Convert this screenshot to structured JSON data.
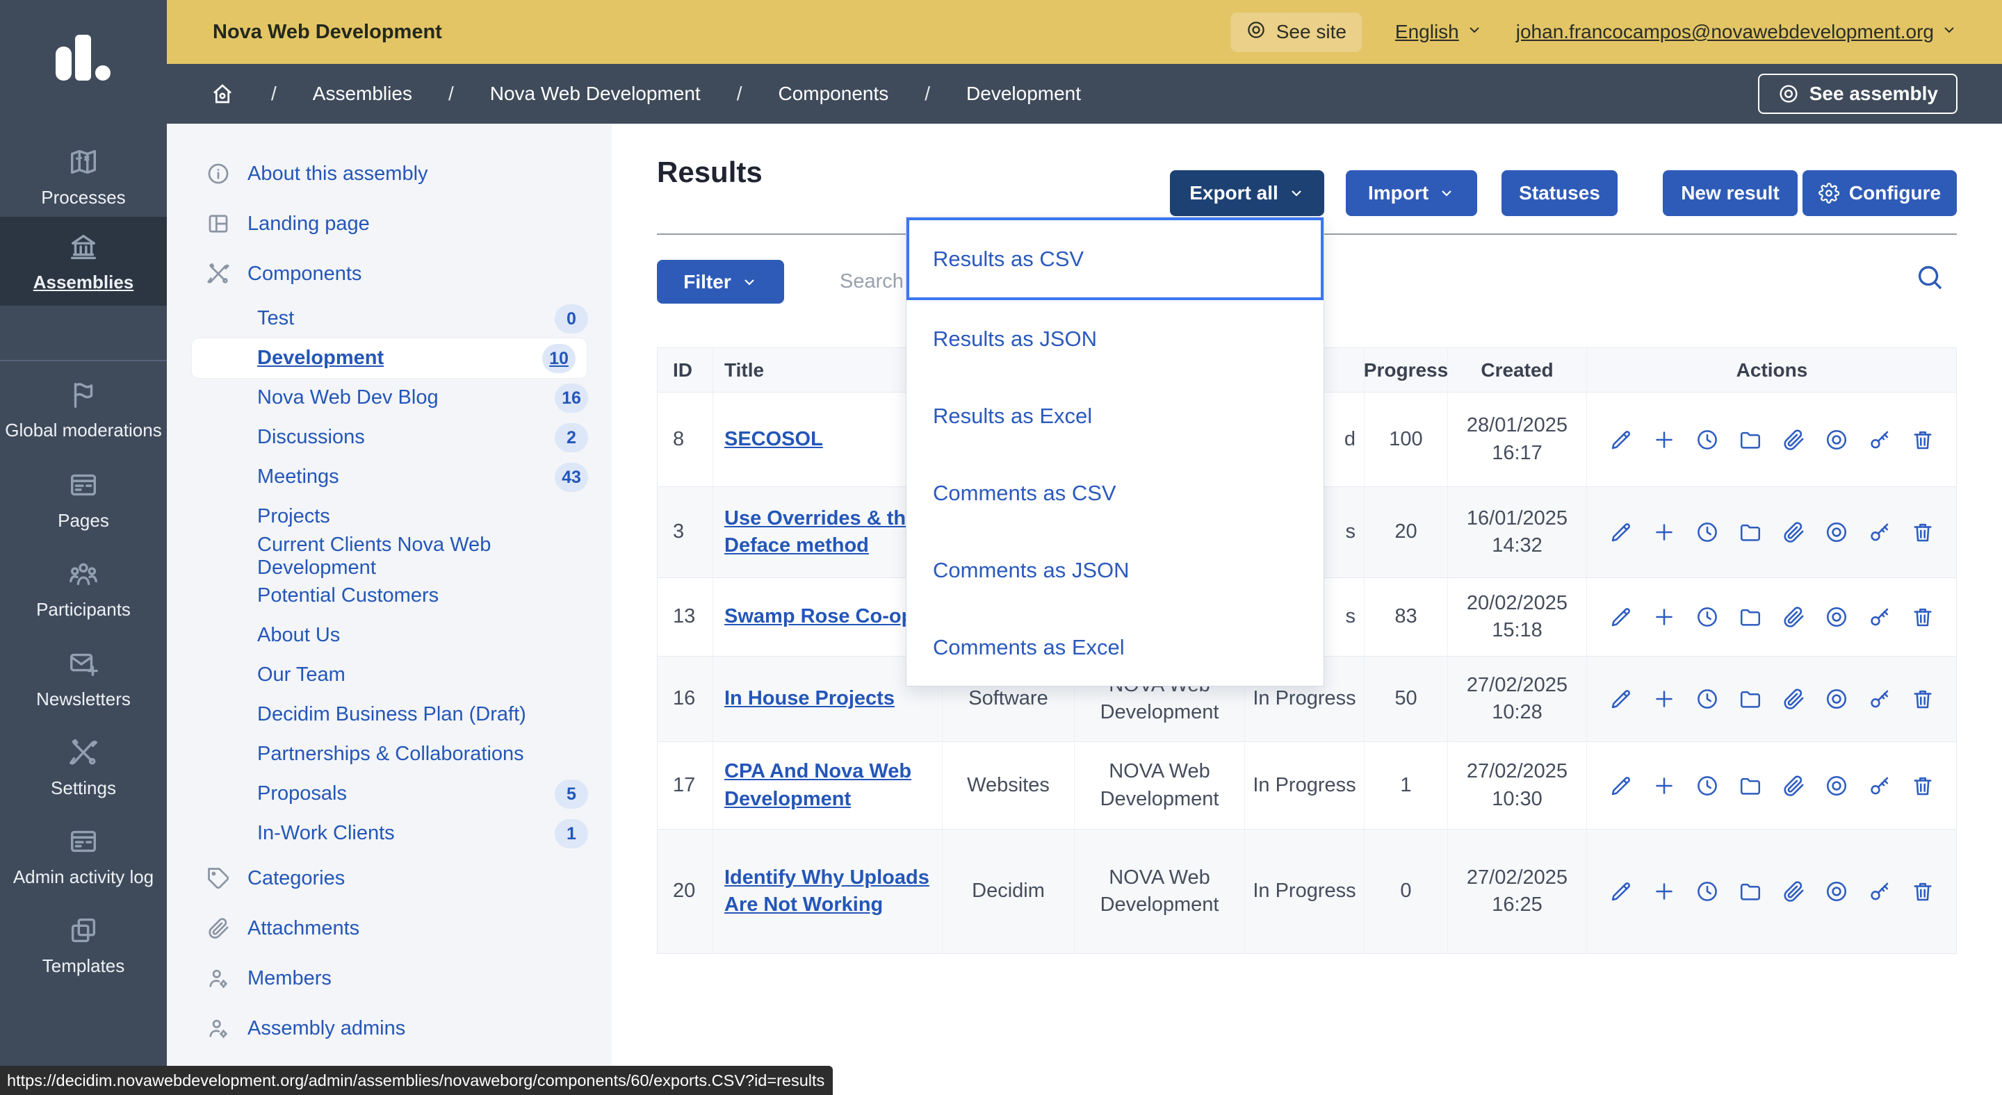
{
  "topbar": {
    "org": "Nova Web Development",
    "see_site": "See site",
    "language": "English",
    "user_email": "johan.francocampos@novawebdevelopment.org"
  },
  "breadcrumb": {
    "items": [
      "Assemblies",
      "Nova Web Development",
      "Components",
      "Development"
    ],
    "see_assembly": "See assembly"
  },
  "nav": {
    "items": [
      {
        "icon": "map-icon",
        "label": "Processes",
        "active": false
      },
      {
        "icon": "bank-icon",
        "label": "Assemblies",
        "active": true
      },
      {
        "icon": "flag-icon",
        "label": "Global moderations",
        "active": false
      },
      {
        "icon": "browser-icon",
        "label": "Pages",
        "active": false
      },
      {
        "icon": "people-icon",
        "label": "Participants",
        "active": false
      },
      {
        "icon": "mail-plus-icon",
        "label": "Newsletters",
        "active": false
      },
      {
        "icon": "tools-icon",
        "label": "Settings",
        "active": false
      },
      {
        "icon": "browser-icon",
        "label": "Admin activity log",
        "active": false
      },
      {
        "icon": "copy-icon",
        "label": "Templates",
        "active": false
      }
    ]
  },
  "assembly_menu": {
    "items": [
      {
        "type": "main",
        "icon": "info-icon",
        "label": "About this assembly"
      },
      {
        "type": "main",
        "icon": "layout-icon",
        "label": "Landing page"
      },
      {
        "type": "main",
        "icon": "tools-icon",
        "label": "Components"
      },
      {
        "type": "sub",
        "label": "Test",
        "badge": "0"
      },
      {
        "type": "sub",
        "label": "Development",
        "badge": "10",
        "active": true
      },
      {
        "type": "sub",
        "label": "Nova Web Dev Blog",
        "badge": "16"
      },
      {
        "type": "sub",
        "label": "Discussions",
        "badge": "2"
      },
      {
        "type": "sub",
        "label": "Meetings",
        "badge": "43"
      },
      {
        "type": "sub",
        "label": "Projects"
      },
      {
        "type": "sub",
        "label": "Current Clients Nova Web Development"
      },
      {
        "type": "sub",
        "label": "Potential Customers"
      },
      {
        "type": "sub",
        "label": "About Us"
      },
      {
        "type": "sub",
        "label": "Our Team"
      },
      {
        "type": "sub",
        "label": "Decidim Business Plan (Draft)"
      },
      {
        "type": "sub",
        "label": "Partnerships & Collaborations"
      },
      {
        "type": "sub",
        "label": "Proposals",
        "badge": "5"
      },
      {
        "type": "sub",
        "label": "In-Work Clients",
        "badge": "1"
      },
      {
        "type": "main",
        "icon": "tag-icon",
        "label": "Categories"
      },
      {
        "type": "main",
        "icon": "paperclip-icon",
        "label": "Attachments"
      },
      {
        "type": "main",
        "icon": "person-gear-icon",
        "label": "Members"
      },
      {
        "type": "main",
        "icon": "person-gear-icon",
        "label": "Assembly admins"
      }
    ]
  },
  "main": {
    "title": "Results",
    "buttons": {
      "export_all": "Export all",
      "import": "Import",
      "statuses": "Statuses",
      "new_result": "New result",
      "configure": "Configure"
    },
    "filter_label": "Filter",
    "search_placeholder": "Search",
    "export_menu": [
      "Results as CSV",
      "Results as JSON",
      "Results as Excel",
      "Comments as CSV",
      "Comments as JSON",
      "Comments as Excel"
    ],
    "table": {
      "headers": [
        "ID",
        "Title",
        "",
        "",
        "",
        "Progress",
        "Created",
        "Actions"
      ],
      "action_icons": [
        "edit-icon",
        "add-icon",
        "history-icon",
        "folder-icon",
        "attachment-icon",
        "preview-icon",
        "key-icon",
        "delete-icon"
      ],
      "rows": [
        {
          "id": "8",
          "title": "SECOSOL",
          "category": "",
          "scope": "",
          "status": "d",
          "status_fragment": true,
          "progress": "100",
          "created_date": "28/01/2025",
          "created_time": "16:17"
        },
        {
          "id": "3",
          "title": "Use Overrides & the Deface method",
          "category": "",
          "scope": "",
          "status": "s",
          "status_fragment": true,
          "progress": "20",
          "created_date": "16/01/2025",
          "created_time": "14:32"
        },
        {
          "id": "13",
          "title": "Swamp Rose Co-op",
          "category": "",
          "scope": "",
          "status": "s",
          "status_fragment": true,
          "progress": "83",
          "created_date": "20/02/2025",
          "created_time": "15:18"
        },
        {
          "id": "16",
          "title": "In House Projects",
          "category": "Software",
          "scope": "NOVA Web Development",
          "status": "In Progress",
          "status_fragment": false,
          "progress": "50",
          "created_date": "27/02/2025",
          "created_time": "10:28"
        },
        {
          "id": "17",
          "title": "CPA And Nova Web Development",
          "category": "Websites",
          "scope": "NOVA Web Development",
          "status": "In Progress",
          "status_fragment": false,
          "progress": "1",
          "created_date": "27/02/2025",
          "created_time": "10:30"
        },
        {
          "id": "20",
          "title": "Identify Why Uploads Are Not Working",
          "category": "Decidim",
          "scope": "NOVA Web Development",
          "status": "In Progress",
          "status_fragment": false,
          "progress": "0",
          "created_date": "27/02/2025",
          "created_time": "16:25"
        }
      ]
    }
  },
  "statusbar": {
    "url": "https://decidim.novawebdevelopment.org/admin/assemblies/novaweborg/components/60/exports.CSV?id=results"
  },
  "colors": {
    "topbar_yellow": "#e3c566",
    "sidebar_dark": "#3f4b5b",
    "sidebar_active": "#2c3643",
    "button_blue": "#2e5bb7",
    "button_navy": "#1d4173",
    "link_blue": "#2456b8",
    "focus_ring": "#3a76f1",
    "subbar_bg": "#f3f5f8",
    "statusbar_bg": "#2d2d2d"
  }
}
